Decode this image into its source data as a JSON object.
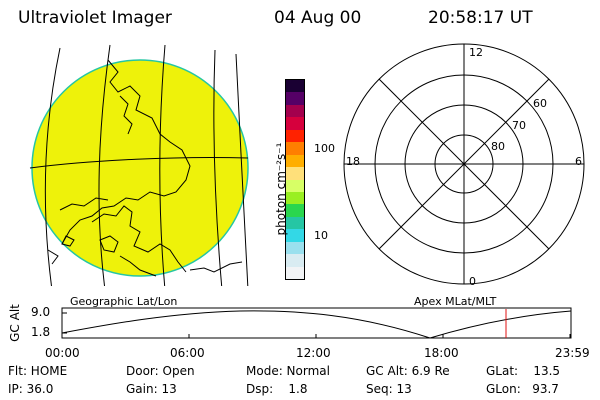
{
  "header": {
    "instrument": "Ultraviolet Imager",
    "date": "04 Aug 00",
    "time": "20:58:17 UT"
  },
  "colorbar": {
    "unit_label": "photon cm⁻²s⁻¹",
    "ticks": [
      "100",
      "10"
    ],
    "colors": [
      "#1a0033",
      "#550066",
      "#a3004d",
      "#d6003d",
      "#ff2200",
      "#ff7f00",
      "#ffae00",
      "#ffe07a",
      "#d7ff66",
      "#9aef21",
      "#2ad64e",
      "#25c6a4",
      "#33d8e6",
      "#9ae0ee",
      "#d9ecf2",
      "#f2f4f6"
    ]
  },
  "map_panel": {
    "disc_color": "#eef20a",
    "caption": "Geographic Lat/Lon"
  },
  "polar_panel": {
    "caption": "Apex MLat/MLT",
    "mlt_labels": {
      "top": "12",
      "right": "6",
      "bottom": "0",
      "left": "18"
    },
    "lat_labels": [
      "60",
      "70",
      "80"
    ]
  },
  "altitude_plot": {
    "ylabel": "GC Alt",
    "yticks": [
      "9.0",
      "1.8"
    ],
    "xticks": [
      "00:00",
      "06:00",
      "12:00",
      "18:00",
      "23:59"
    ],
    "marker_color": "#e01010"
  },
  "status": {
    "flt": "Flt: HOME",
    "ip": "IP: 36.0",
    "door": "Door: Open",
    "gain": "Gain: 13",
    "mode": "Mode: Normal",
    "dsp": "Dsp:    1.8",
    "gc_alt": "GC Alt: 6.9 Re",
    "seq": "Seq: 13",
    "glat": "GLat:    13.5",
    "glon": "GLon:   93.7"
  }
}
